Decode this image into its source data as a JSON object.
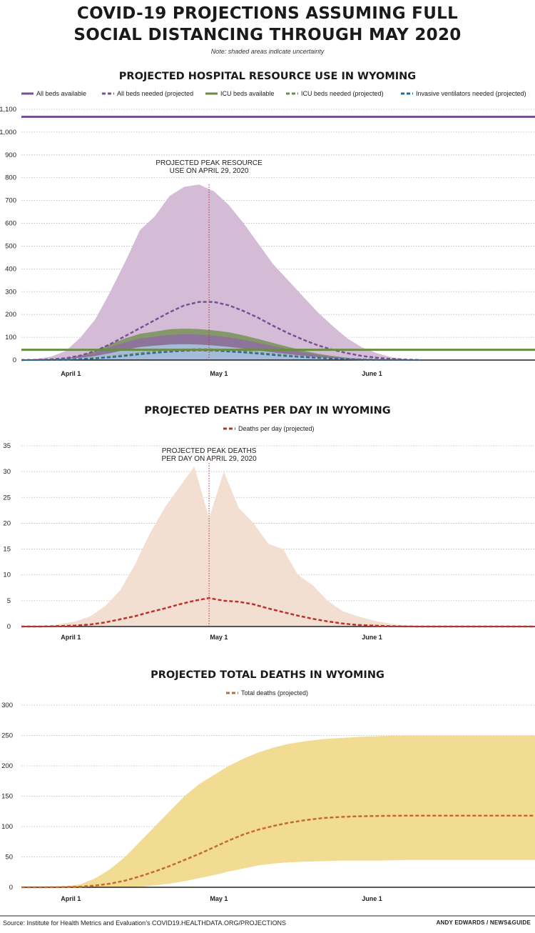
{
  "header": {
    "title_line1": "COVID-19 PROJECTIONS ASSUMING FULL",
    "title_line2": "SOCIAL DISTANCING THROUGH MAY 2020",
    "note": "Note: shaded areas indicate uncertainty"
  },
  "footer": {
    "source": "Source: Institute for Health Metrics and Evaluation’s COVID19.HEALTHDATA.ORG/PROJECTIONS",
    "credit": "ANDY EDWARDS / NEWS&GUIDE"
  },
  "colors": {
    "purple_line": "#7b4f96",
    "purple_band": "#d4bcd7",
    "icu_green": "#6b8c46",
    "icu_band": "#9f8fb1",
    "vent_blue": "#2a6a9b",
    "vent_band": "#a9c3de",
    "deaths_red": "#c0302b",
    "deaths_band": "#f3dfd1",
    "total_orange": "#c26b30",
    "total_band": "#f2dc93"
  },
  "chart_data": [
    {
      "type": "area",
      "title": "PROJECTED HOSPITAL RESOURCE USE IN WYOMING",
      "yticks": [
        0,
        100,
        200,
        300,
        400,
        500,
        600,
        700,
        800,
        900,
        1000,
        1100
      ],
      "ytick_labels": [
        "0",
        "100",
        "200",
        "300",
        "400",
        "500",
        "600",
        "700",
        "800",
        "900",
        "1,000",
        "1,100"
      ],
      "ylim": [
        0,
        1100
      ],
      "xlim": [
        "2020-03-22",
        "2020-07-04"
      ],
      "xticks": [
        "2020-04-01",
        "2020-05-01",
        "2020-06-01"
      ],
      "xtick_labels": [
        "April 1",
        "May 1",
        "June 1"
      ],
      "grid": true,
      "legend_position": "top",
      "legend": [
        "All beds available",
        "All beds needed (projected",
        "ICU beds available",
        "ICU beds needed (projected)",
        "Invasive ventilators needed (projected)"
      ],
      "annotation": {
        "line1": "PROJECTED PEAK RESOURCE",
        "line2": "USE ON APRIL 29, 2020",
        "date": "2020-04-29"
      },
      "x": [
        "2020-03-22",
        "2020-03-25",
        "2020-03-28",
        "2020-03-31",
        "2020-04-03",
        "2020-04-06",
        "2020-04-09",
        "2020-04-12",
        "2020-04-15",
        "2020-04-18",
        "2020-04-21",
        "2020-04-24",
        "2020-04-27",
        "2020-04-30",
        "2020-05-03",
        "2020-05-06",
        "2020-05-09",
        "2020-05-12",
        "2020-05-15",
        "2020-05-18",
        "2020-05-21",
        "2020-05-24",
        "2020-05-27",
        "2020-05-30",
        "2020-06-02",
        "2020-06-05",
        "2020-06-08",
        "2020-06-11"
      ],
      "series": [
        {
          "name": "All beds available",
          "style": "solid",
          "constant": 1067
        },
        {
          "name": "All beds needed (projected",
          "style": "dashed",
          "values": [
            0,
            1,
            3,
            8,
            20,
            40,
            70,
            105,
            140,
            175,
            210,
            240,
            255,
            255,
            240,
            215,
            185,
            150,
            118,
            90,
            65,
            45,
            30,
            18,
            10,
            5,
            2,
            0
          ],
          "upper": [
            0,
            5,
            15,
            40,
            100,
            180,
            300,
            430,
            570,
            630,
            720,
            760,
            770,
            740,
            680,
            600,
            510,
            420,
            350,
            280,
            210,
            150,
            95,
            55,
            30,
            12,
            4,
            0
          ]
        },
        {
          "name": "ICU beds available",
          "style": "solid",
          "constant": 45
        },
        {
          "name": "ICU beds needed (projected)",
          "style": "dashed",
          "values": [
            0,
            0,
            1,
            2,
            5,
            9,
            15,
            22,
            30,
            36,
            42,
            46,
            48,
            47,
            43,
            38,
            32,
            26,
            20,
            15,
            11,
            7,
            5,
            3,
            2,
            1,
            0,
            0
          ],
          "upper": [
            0,
            1,
            3,
            8,
            20,
            40,
            70,
            95,
            115,
            125,
            135,
            138,
            136,
            130,
            122,
            108,
            92,
            75,
            58,
            42,
            28,
            18,
            10,
            5,
            2,
            1,
            0,
            0
          ]
        },
        {
          "name": "Invasive ventilators needed (projected)",
          "style": "dashed",
          "values": [
            0,
            0,
            1,
            2,
            4,
            7,
            12,
            18,
            25,
            31,
            36,
            40,
            42,
            41,
            37,
            33,
            28,
            22,
            17,
            13,
            9,
            6,
            4,
            2,
            1,
            1,
            0,
            0
          ],
          "upper": [
            0,
            1,
            2,
            5,
            10,
            18,
            30,
            45,
            57,
            63,
            68,
            70,
            68,
            64,
            58,
            50,
            42,
            34,
            26,
            19,
            13,
            8,
            5,
            3,
            1,
            0,
            0,
            0
          ]
        }
      ]
    },
    {
      "type": "area",
      "title": "PROJECTED DEATHS PER DAY IN WYOMING",
      "yticks": [
        0,
        5,
        10,
        15,
        20,
        25,
        30,
        35
      ],
      "ylim": [
        0,
        35
      ],
      "xlim": [
        "2020-03-22",
        "2020-07-04"
      ],
      "xticks": [
        "2020-04-01",
        "2020-05-01",
        "2020-06-01"
      ],
      "xtick_labels": [
        "April 1",
        "May 1",
        "June 1"
      ],
      "grid": true,
      "legend_position": "top",
      "legend": [
        "Deaths per day (projected)"
      ],
      "annotation": {
        "line1": "PROJECTED PEAK DEATHS",
        "line2": "PER DAY ON APRIL 29, 2020",
        "date": "2020-04-29"
      },
      "x": [
        "2020-03-22",
        "2020-03-26",
        "2020-03-30",
        "2020-04-02",
        "2020-04-05",
        "2020-04-08",
        "2020-04-11",
        "2020-04-14",
        "2020-04-17",
        "2020-04-20",
        "2020-04-23",
        "2020-04-26",
        "2020-04-29",
        "2020-05-02",
        "2020-05-05",
        "2020-05-08",
        "2020-05-11",
        "2020-05-14",
        "2020-05-17",
        "2020-05-20",
        "2020-05-23",
        "2020-05-26",
        "2020-05-29",
        "2020-06-02",
        "2020-06-05",
        "2020-06-08",
        "2020-06-12",
        "2020-07-04"
      ],
      "series": [
        {
          "name": "Deaths per day (projected)",
          "style": "dashed",
          "values": [
            0,
            0,
            0.1,
            0.2,
            0.4,
            0.8,
            1.4,
            2.0,
            2.8,
            3.5,
            4.3,
            5.0,
            5.5,
            5.0,
            4.8,
            4.3,
            3.5,
            2.8,
            2.1,
            1.5,
            1.0,
            0.6,
            0.3,
            0.15,
            0.05,
            0.01,
            0,
            0
          ],
          "upper": [
            0,
            0,
            0.5,
            1,
            2,
            4,
            7,
            12,
            18,
            23,
            27,
            31,
            21,
            30,
            23,
            20,
            16,
            15,
            10,
            8,
            5,
            3,
            2,
            1,
            0.5,
            0.2,
            0,
            0
          ]
        }
      ]
    },
    {
      "type": "area",
      "title": "PROJECTED TOTAL DEATHS IN WYOMING",
      "yticks": [
        0,
        50,
        100,
        150,
        200,
        250,
        300
      ],
      "ylim": [
        0,
        300
      ],
      "xlim": [
        "2020-03-22",
        "2020-07-04"
      ],
      "xticks": [
        "2020-04-01",
        "2020-05-01",
        "2020-06-01"
      ],
      "xtick_labels": [
        "April 1",
        "May 1",
        "June 1"
      ],
      "grid": true,
      "legend_position": "top",
      "legend": [
        "Total deaths (projected)"
      ],
      "x": [
        "2020-03-22",
        "2020-03-26",
        "2020-03-30",
        "2020-04-03",
        "2020-04-06",
        "2020-04-09",
        "2020-04-12",
        "2020-04-15",
        "2020-04-18",
        "2020-04-21",
        "2020-04-24",
        "2020-04-27",
        "2020-04-30",
        "2020-05-03",
        "2020-05-06",
        "2020-05-09",
        "2020-05-12",
        "2020-05-15",
        "2020-05-18",
        "2020-05-22",
        "2020-05-26",
        "2020-05-30",
        "2020-06-03",
        "2020-06-08",
        "2020-06-14",
        "2020-06-20",
        "2020-06-27",
        "2020-07-04"
      ],
      "series": [
        {
          "name": "Total deaths (projected)",
          "style": "dashed",
          "values": [
            0,
            0,
            0.2,
            1,
            3,
            6,
            11,
            18,
            26,
            35,
            45,
            55,
            66,
            77,
            87,
            95,
            101,
            106,
            110,
            114,
            116,
            117,
            117.5,
            118,
            118,
            118,
            118,
            118
          ],
          "upper": [
            0,
            0,
            1,
            5,
            15,
            30,
            50,
            75,
            100,
            125,
            150,
            170,
            185,
            200,
            212,
            222,
            230,
            236,
            240,
            244,
            246,
            248,
            249,
            250,
            250,
            250,
            250,
            250
          ],
          "lower": [
            0,
            0,
            0,
            0,
            0,
            0,
            0,
            1,
            3,
            6,
            10,
            15,
            20,
            26,
            31,
            36,
            39,
            41,
            42,
            43,
            44,
            44,
            44,
            45,
            45,
            45,
            45,
            45
          ]
        }
      ]
    }
  ]
}
